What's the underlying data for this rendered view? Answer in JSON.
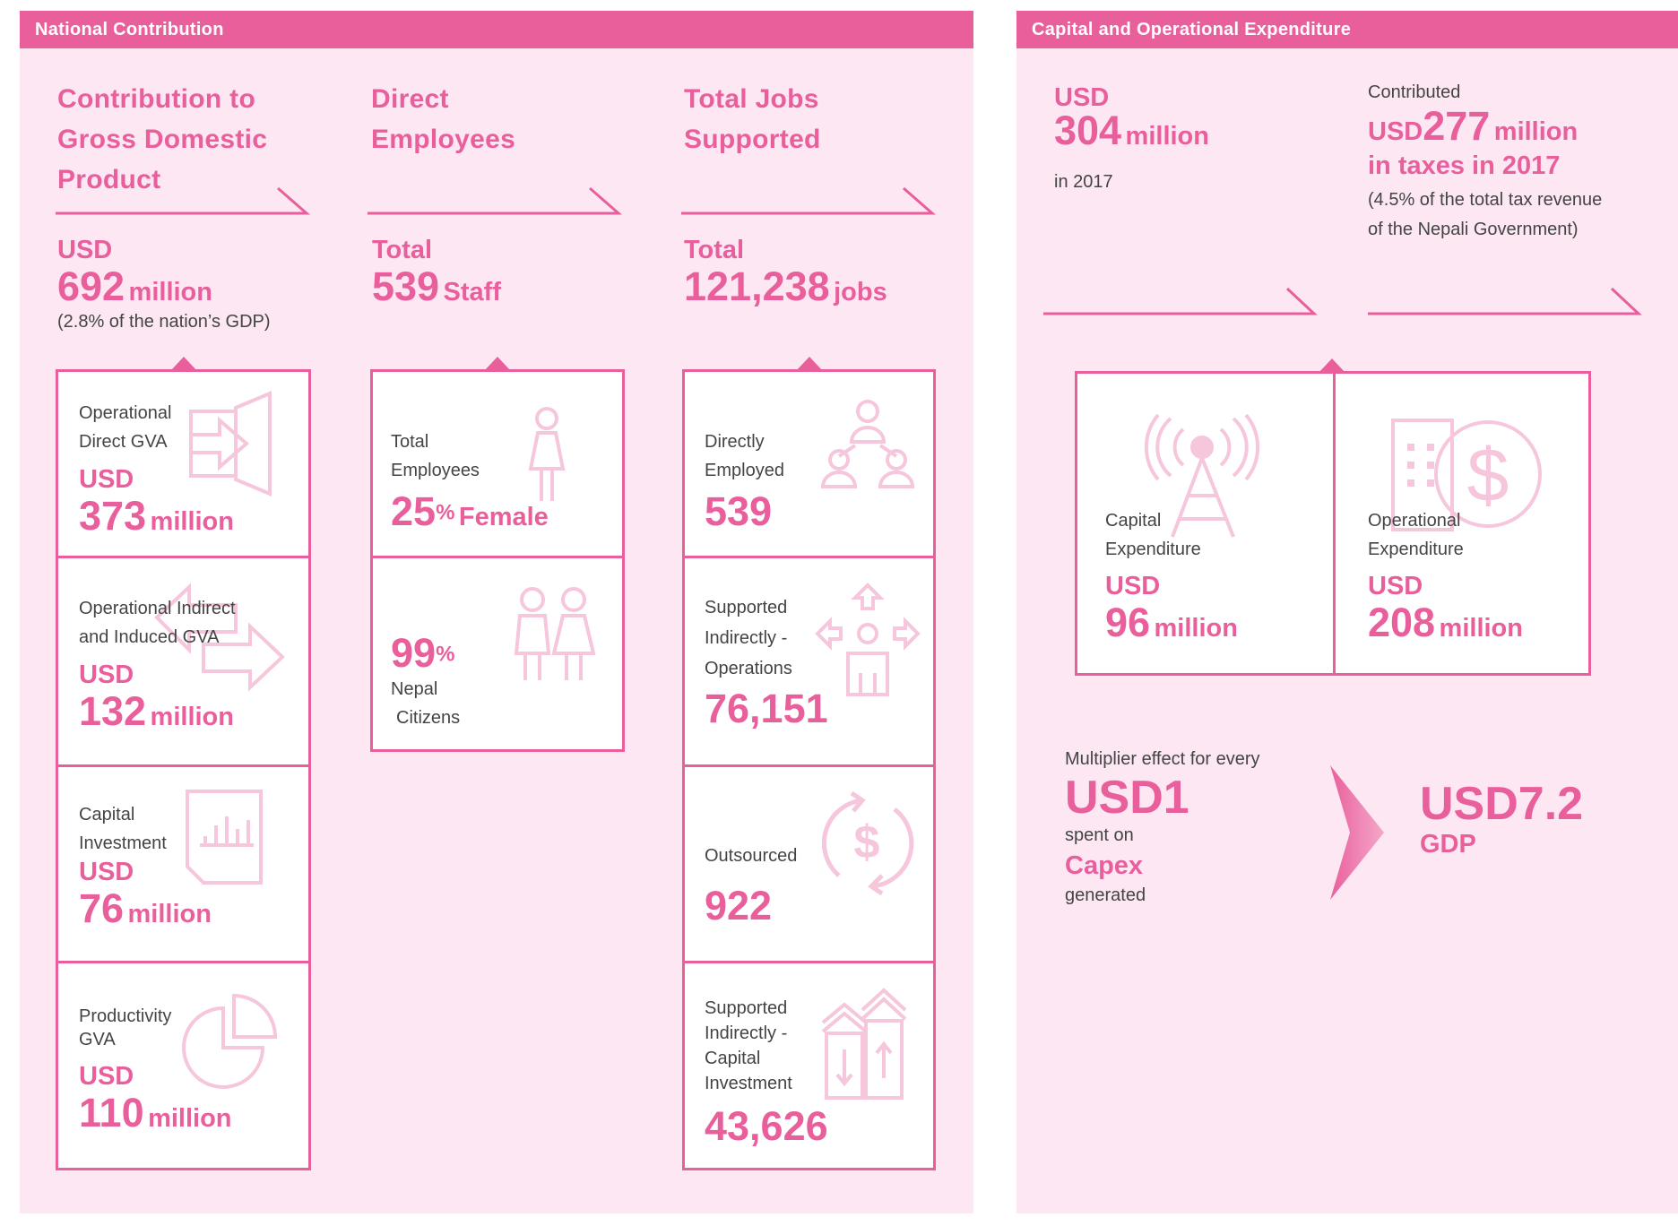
{
  "national": {
    "header": "National Contribution",
    "gdp": {
      "title_lines": [
        "Contribution to",
        "Gross Domestic",
        "Product"
      ],
      "currency": "USD",
      "value": "692",
      "unit": "million",
      "note": "(2.8% of the nation’s GDP)",
      "cards": [
        {
          "label_lines": [
            "Operational",
            "Direct GVA"
          ],
          "currency": "USD",
          "value": "373",
          "unit": "million",
          "icon": "exit-door-icon"
        },
        {
          "label_lines": [
            "Operational Indirect",
            "and Induced GVA"
          ],
          "currency": "USD",
          "value": "132",
          "unit": "million",
          "icon": "double-arrow-icon"
        },
        {
          "label_lines": [
            "Capital",
            "Investment"
          ],
          "currency": "USD",
          "value": "76",
          "unit": "million",
          "icon": "document-chart-icon"
        },
        {
          "label_lines": [
            "Productivity",
            "GVA"
          ],
          "currency": "USD",
          "value": "110",
          "unit": "million",
          "icon": "pie-chart-icon"
        }
      ]
    },
    "employees": {
      "title_lines": [
        "Direct",
        "Employees"
      ],
      "prefix": "Total",
      "value": "539",
      "unit": "Staff",
      "cards": [
        {
          "label_lines": [
            "Total",
            "Employees"
          ],
          "value": "25",
          "suffix": "%",
          "unit": "Female",
          "icon": "female-person-icon"
        },
        {
          "label_lines": [
            "Nepal",
            "Citizens"
          ],
          "value": "99",
          "suffix": "%",
          "icon": "couple-icon"
        }
      ]
    },
    "jobs": {
      "title_lines": [
        "Total Jobs",
        "Supported"
      ],
      "prefix": "Total",
      "value": "121,238",
      "unit": "jobs",
      "cards": [
        {
          "label_lines": [
            "Directly",
            "Employed"
          ],
          "value": "539",
          "icon": "org-people-icon"
        },
        {
          "label_lines": [
            "Supported",
            "Indirectly -",
            "Operations"
          ],
          "value": "76,151",
          "icon": "person-arrows-icon"
        },
        {
          "label_lines": [
            "Outsourced"
          ],
          "value": "922",
          "icon": "dollar-cycle-icon"
        },
        {
          "label_lines": [
            "Supported",
            "Indirectly -",
            "Capital",
            "Investment"
          ],
          "value": "43,626",
          "icon": "buildings-arrows-icon"
        }
      ]
    }
  },
  "capex": {
    "header": "Capital and Operational Expenditure",
    "total": {
      "currency": "USD",
      "value": "304",
      "unit": "million",
      "note": "in 2017"
    },
    "taxes": {
      "pre": "Contributed",
      "currency": "USD",
      "value": "277",
      "unit": "million",
      "line2": "in taxes in 2017",
      "note_lines": [
        "(4.5% of the total tax revenue",
        "of the Nepali Government)"
      ]
    },
    "cards": [
      {
        "label_lines": [
          "Capital",
          "Expenditure"
        ],
        "currency": "USD",
        "value": "96",
        "unit": "million",
        "icon": "radio-tower-icon"
      },
      {
        "label_lines": [
          "Operational",
          "Expenditure"
        ],
        "currency": "USD",
        "value": "208",
        "unit": "million",
        "icon": "building-dollar-icon"
      }
    ],
    "multiplier": {
      "intro": "Multiplier effect for every",
      "amount": "USD1",
      "spent_on": "spent on",
      "category": "Capex",
      "generated": "generated",
      "result": "USD7.2",
      "result_unit": "GDP"
    }
  }
}
